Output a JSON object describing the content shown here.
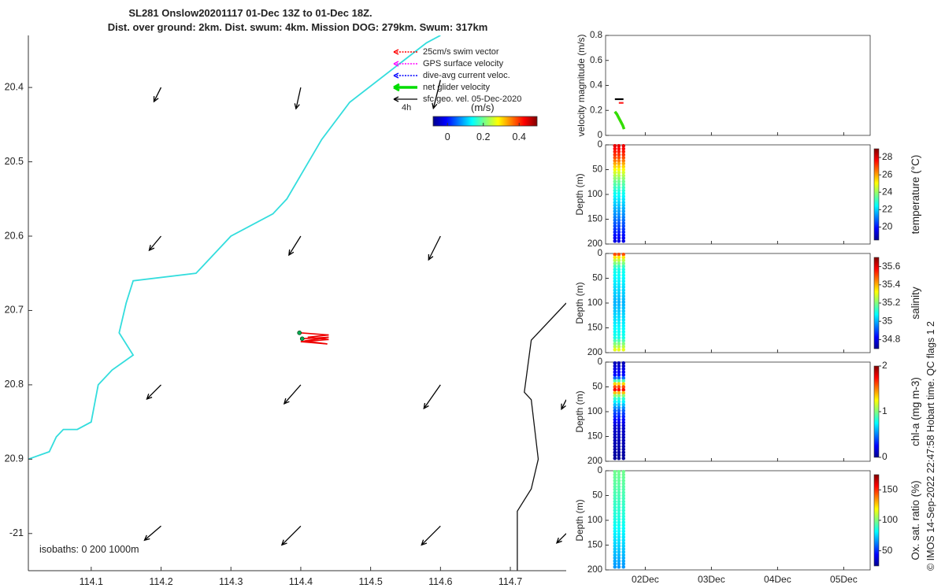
{
  "header": {
    "title_line1": "SL281 Onslow20201117 01-Dec 13Z to 01-Dec 18Z.",
    "title_line2": "Dist. over ground: 2km. Dist. swum: 4km. Mission DOG: 279km. Swum: 317km"
  },
  "credit": "© IMOS 14-Sep-2022 22:47:58 Hobart time. QC flags 1  2",
  "map": {
    "legend": [
      {
        "label": "25cm/s swim vector",
        "color": "#ff0000",
        "style": "dotted"
      },
      {
        "label": "GPS surface velocity",
        "color": "#ff00ff",
        "style": "dotted"
      },
      {
        "label": "dive-avg current veloc.",
        "color": "#0000ff",
        "style": "dotted"
      },
      {
        "label": "net glider velocity",
        "color": "#00dd00",
        "style": "thick"
      },
      {
        "label": "sfc geo. vel. 05-Dec-2020",
        "color": "#000000",
        "style": "solid"
      }
    ],
    "time_window_label": "4h",
    "colorbar": {
      "unit_label": "(m/s)",
      "ticks": [
        "0",
        "0.2",
        "0.4"
      ],
      "range": [
        -0.08,
        0.5
      ]
    },
    "isobaths_label": "isobaths: 0   200  1000m",
    "x_ticks": [
      "114.1",
      "114.2",
      "114.3",
      "114.4",
      "114.5",
      "114.6",
      "114.7"
    ],
    "y_ticks": [
      "20.4",
      "20.5",
      "20.6",
      "20.7",
      "20.8",
      "20.9",
      "-21"
    ],
    "xlim": [
      114.01,
      114.78
    ],
    "ylim": [
      20.33,
      21.05
    ]
  },
  "chart_data": [
    {
      "type": "line",
      "title": "Glider track map",
      "xlabel": "",
      "ylabel": "",
      "xlim": [
        114.01,
        114.78
      ],
      "ylim": [
        20.33,
        21.05
      ],
      "y_reversed": true,
      "coastline_cyan": [
        [
          114.6,
          20.33
        ],
        [
          114.58,
          20.34
        ],
        [
          114.47,
          20.42
        ],
        [
          114.43,
          20.47
        ],
        [
          114.38,
          20.55
        ],
        [
          114.36,
          20.57
        ],
        [
          114.3,
          20.6
        ],
        [
          114.25,
          20.65
        ],
        [
          114.16,
          20.66
        ],
        [
          114.15,
          20.69
        ],
        [
          114.14,
          20.73
        ],
        [
          114.16,
          20.76
        ],
        [
          114.13,
          20.78
        ],
        [
          114.11,
          20.8
        ],
        [
          114.1,
          20.85
        ],
        [
          114.08,
          20.86
        ],
        [
          114.06,
          20.86
        ],
        [
          114.05,
          20.87
        ],
        [
          114.04,
          20.89
        ],
        [
          114.01,
          20.9
        ]
      ],
      "isobath_black": [
        [
          114.78,
          20.69
        ],
        [
          114.73,
          20.74
        ],
        [
          114.72,
          20.81
        ],
        [
          114.73,
          20.82
        ],
        [
          114.74,
          20.9
        ],
        [
          114.73,
          20.94
        ],
        [
          114.71,
          20.97
        ],
        [
          114.71,
          21.05
        ]
      ],
      "glider_track": [
        [
          114.398,
          20.73
        ],
        [
          114.44,
          20.733
        ],
        [
          114.41,
          20.736
        ],
        [
          114.44,
          20.739
        ],
        [
          114.4,
          20.742
        ],
        [
          114.438,
          20.745
        ],
        [
          114.405,
          20.741
        ],
        [
          114.44,
          20.736
        ],
        [
          114.402,
          20.738
        ]
      ],
      "geo_velocity_arrows": [
        {
          "lon": 114.2,
          "lat": 20.4,
          "u": -0.15,
          "v": 0.3
        },
        {
          "lon": 114.4,
          "lat": 20.4,
          "u": -0.1,
          "v": 0.45
        },
        {
          "lon": 114.6,
          "lat": 20.39,
          "u": -0.15,
          "v": 0.6
        },
        {
          "lon": 114.2,
          "lat": 20.6,
          "u": -0.25,
          "v": 0.3
        },
        {
          "lon": 114.4,
          "lat": 20.6,
          "u": -0.25,
          "v": 0.4
        },
        {
          "lon": 114.6,
          "lat": 20.6,
          "u": -0.25,
          "v": 0.5
        },
        {
          "lon": 114.2,
          "lat": 20.8,
          "u": -0.3,
          "v": 0.3
        },
        {
          "lon": 114.4,
          "lat": 20.8,
          "u": -0.35,
          "v": 0.4
        },
        {
          "lon": 114.6,
          "lat": 20.8,
          "u": -0.35,
          "v": 0.5
        },
        {
          "lon": 114.78,
          "lat": 20.82,
          "u": -0.1,
          "v": 0.2
        },
        {
          "lon": 114.2,
          "lat": 20.99,
          "u": -0.35,
          "v": 0.3
        },
        {
          "lon": 114.4,
          "lat": 20.99,
          "u": -0.4,
          "v": 0.4
        },
        {
          "lon": 114.6,
          "lat": 20.99,
          "u": -0.4,
          "v": 0.4
        },
        {
          "lon": 114.78,
          "lat": 21.0,
          "u": -0.2,
          "v": 0.2
        }
      ]
    },
    {
      "type": "line",
      "ylabel": "velocity magnitude (m/s)",
      "ylim": [
        0,
        0.8
      ],
      "y_ticks": [
        "0",
        "0.2",
        "0.4",
        "0.6",
        "0.8"
      ],
      "x_ticks": [
        "02Dec",
        "03Dec",
        "04Dec",
        "05Dec"
      ],
      "xlim": [
        1.4,
        5.4
      ],
      "series": [
        {
          "color": "#000000",
          "x": [
            1.54,
            1.67
          ],
          "values": [
            0.29,
            0.29
          ]
        },
        {
          "color": "#ff2020",
          "x": [
            1.6,
            1.67
          ],
          "values": [
            0.26,
            0.26
          ]
        },
        {
          "color": "#33dd00",
          "x": [
            1.54,
            1.57,
            1.6,
            1.63,
            1.66,
            1.68
          ],
          "values": [
            0.19,
            0.17,
            0.14,
            0.11,
            0.08,
            0.05
          ]
        }
      ]
    },
    {
      "type": "scatter",
      "ylabel": "Depth (m)",
      "colorbar_label": "temperature (°C)",
      "colorbar_ticks": [
        "20",
        "22",
        "24",
        "26",
        "28"
      ],
      "crange": [
        18.5,
        29
      ],
      "ylim": [
        0,
        200
      ],
      "y_ticks": [
        "0",
        "50",
        "100",
        "150",
        "200"
      ],
      "casts": [
        1.54,
        1.6,
        1.67
      ],
      "profile": {
        "depth": [
          0,
          25,
          50,
          75,
          100,
          150,
          195
        ],
        "value": [
          28,
          27,
          25,
          23.5,
          22.5,
          21,
          19.5
        ]
      }
    },
    {
      "type": "scatter",
      "ylabel": "Depth (m)",
      "colorbar_label": "salinity",
      "colorbar_ticks": [
        "34.8",
        "35",
        "35.2",
        "35.4",
        "35.6"
      ],
      "crange": [
        34.7,
        35.7
      ],
      "ylim": [
        0,
        200
      ],
      "y_ticks": [
        "0",
        "50",
        "100",
        "150",
        "200"
      ],
      "casts": [
        1.54,
        1.6,
        1.67
      ],
      "profile": {
        "depth": [
          0,
          10,
          30,
          100,
          170,
          200
        ],
        "value": [
          35.55,
          35.3,
          35.1,
          35.0,
          35.1,
          35.35
        ]
      }
    },
    {
      "type": "scatter",
      "ylabel": "Depth (m)",
      "colorbar_label": "chl-a (mg m-3)",
      "colorbar_ticks": [
        "0",
        "1",
        "2"
      ],
      "crange": [
        0,
        2
      ],
      "ylim": [
        0,
        200
      ],
      "y_ticks": [
        "0",
        "50",
        "100",
        "150",
        "200"
      ],
      "casts": [
        1.54,
        1.6,
        1.67
      ],
      "profile": {
        "depth": [
          0,
          30,
          45,
          55,
          70,
          100,
          130,
          200
        ],
        "value": [
          0.1,
          0.3,
          1.4,
          1.8,
          0.9,
          0.4,
          0.15,
          0.05
        ]
      }
    },
    {
      "type": "scatter",
      "ylabel": "Depth (m)",
      "colorbar_label": "Ox. sat. ratio (%)",
      "colorbar_ticks": [
        "50",
        "100",
        "150"
      ],
      "crange": [
        25,
        175
      ],
      "ylim": [
        0,
        200
      ],
      "y_ticks": [
        "0",
        "50",
        "100",
        "150",
        "200"
      ],
      "casts": [
        1.54,
        1.6,
        1.67
      ],
      "profile": {
        "depth": [
          0,
          50,
          100,
          150,
          200
        ],
        "value": [
          98,
          92,
          85,
          75,
          65
        ]
      }
    }
  ]
}
